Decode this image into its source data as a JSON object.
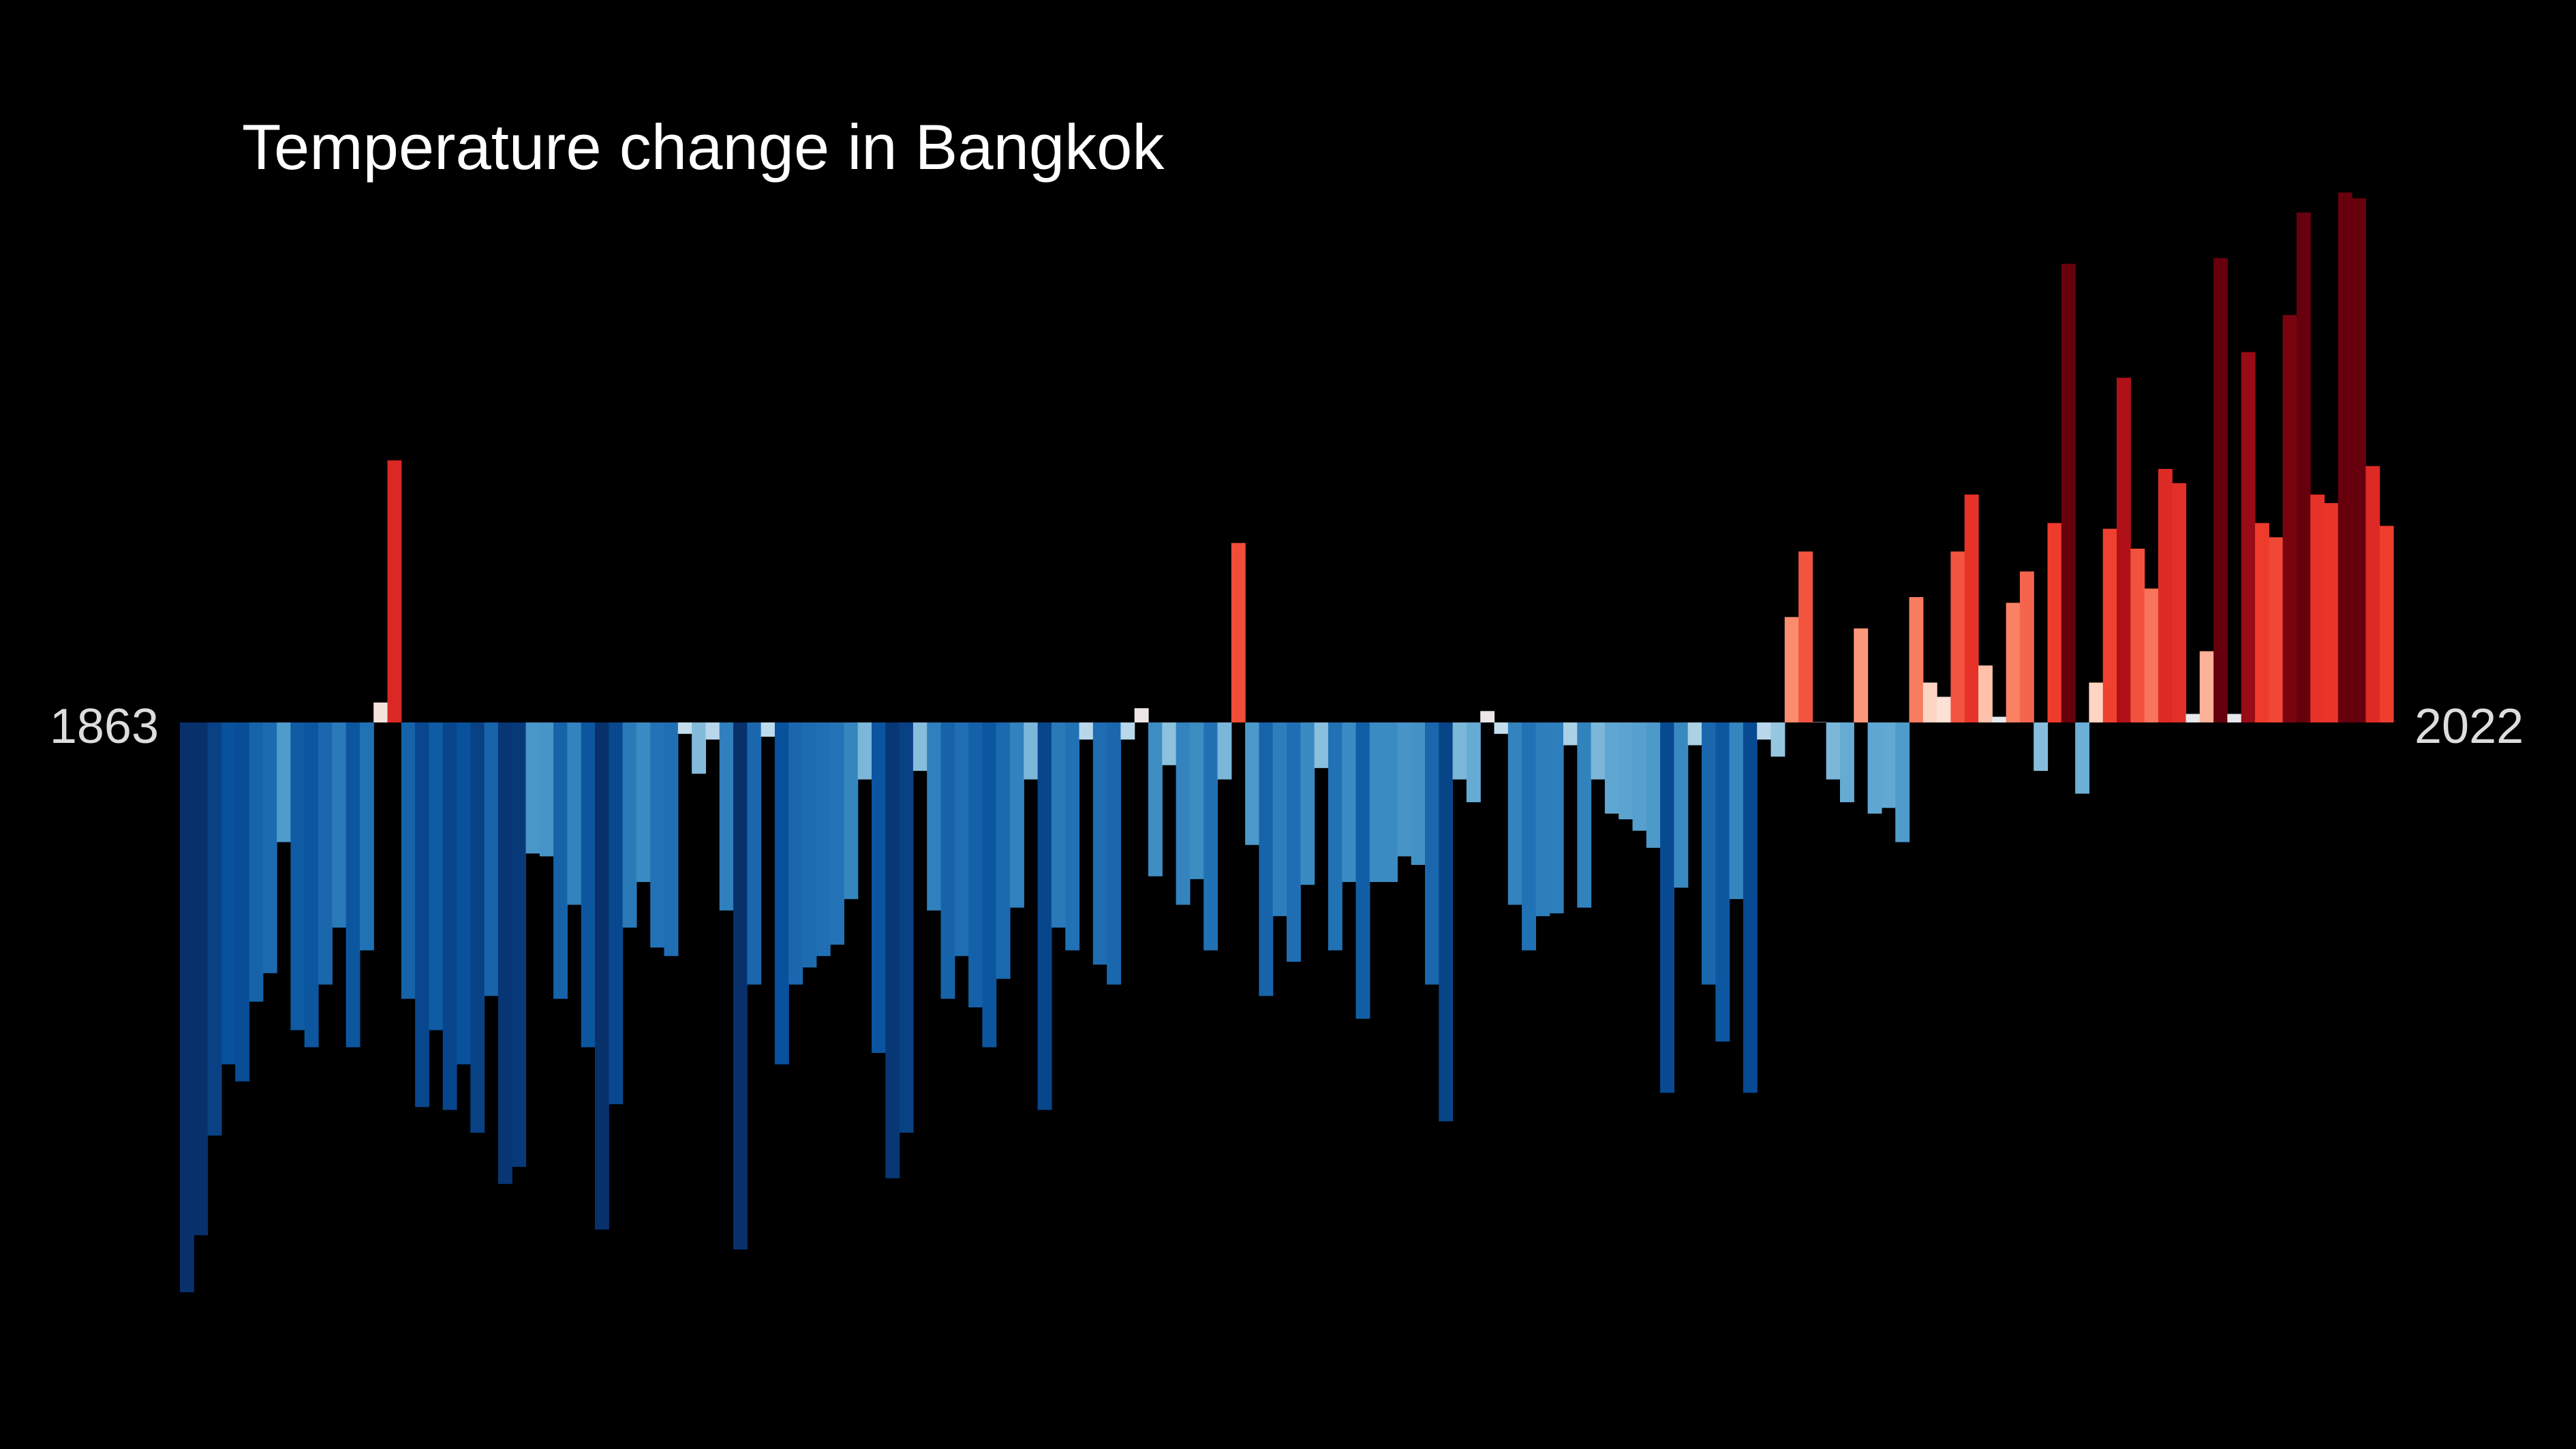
{
  "chart_data": {
    "type": "bar",
    "title": "Temperature change in Bangkok",
    "start_year_label": "1863",
    "end_year_label": "2022",
    "start_year": 1863,
    "end_year": 2022,
    "ylim": [
      -2.0,
      1.85
    ],
    "values": [
      -2.0,
      -1.8,
      -1.45,
      -1.2,
      -1.26,
      -0.98,
      -0.88,
      -0.42,
      -1.08,
      -1.14,
      -0.92,
      -0.72,
      -1.14,
      -0.8,
      0.07,
      0.92,
      -0.97,
      -1.35,
      -1.08,
      -1.36,
      -1.2,
      -1.44,
      -0.96,
      -1.62,
      -1.56,
      -0.46,
      -0.47,
      -0.97,
      -0.64,
      -1.14,
      -1.78,
      -1.34,
      -0.72,
      -0.56,
      -0.79,
      -0.82,
      -0.04,
      -0.18,
      -0.06,
      -0.66,
      -1.85,
      -0.92,
      -0.05,
      -1.2,
      -0.92,
      -0.86,
      -0.82,
      -0.78,
      -0.62,
      -0.2,
      -1.16,
      -1.6,
      -1.44,
      -0.17,
      -0.66,
      -0.97,
      -0.82,
      -1.0,
      -1.14,
      -0.9,
      -0.65,
      -0.2,
      -1.36,
      -0.72,
      -0.8,
      -0.06,
      -0.85,
      -0.92,
      -0.06,
      0.05,
      -0.54,
      -0.15,
      -0.64,
      -0.55,
      -0.8,
      -0.2,
      0.63,
      -0.43,
      -0.96,
      -0.68,
      -0.84,
      -0.57,
      -0.16,
      -0.8,
      -0.56,
      -1.04,
      -0.56,
      -0.56,
      -0.47,
      -0.5,
      -0.92,
      -1.4,
      -0.2,
      -0.28,
      0.04,
      -0.04,
      -0.64,
      -0.8,
      -0.68,
      -0.67,
      -0.08,
      -0.65,
      -0.2,
      -0.32,
      -0.34,
      -0.38,
      -0.44,
      -1.3,
      -0.58,
      -0.08,
      -0.92,
      -1.12,
      -0.62,
      -1.3,
      -0.06,
      -0.12,
      0.37,
      0.6,
      0.0,
      -0.2,
      -0.28,
      0.33,
      -0.32,
      -0.3,
      -0.42,
      0.44,
      0.14,
      0.09,
      0.6,
      0.8,
      0.2,
      0.02,
      0.42,
      0.53,
      -0.17,
      0.7,
      1.61,
      -0.25,
      0.14,
      0.68,
      1.21,
      0.61,
      0.47,
      0.89,
      0.84,
      0.03,
      0.25,
      1.63,
      0.03,
      1.3,
      0.7,
      0.65,
      1.43,
      1.79,
      0.8,
      0.77,
      1.86,
      1.84,
      0.9,
      0.69
    ]
  }
}
